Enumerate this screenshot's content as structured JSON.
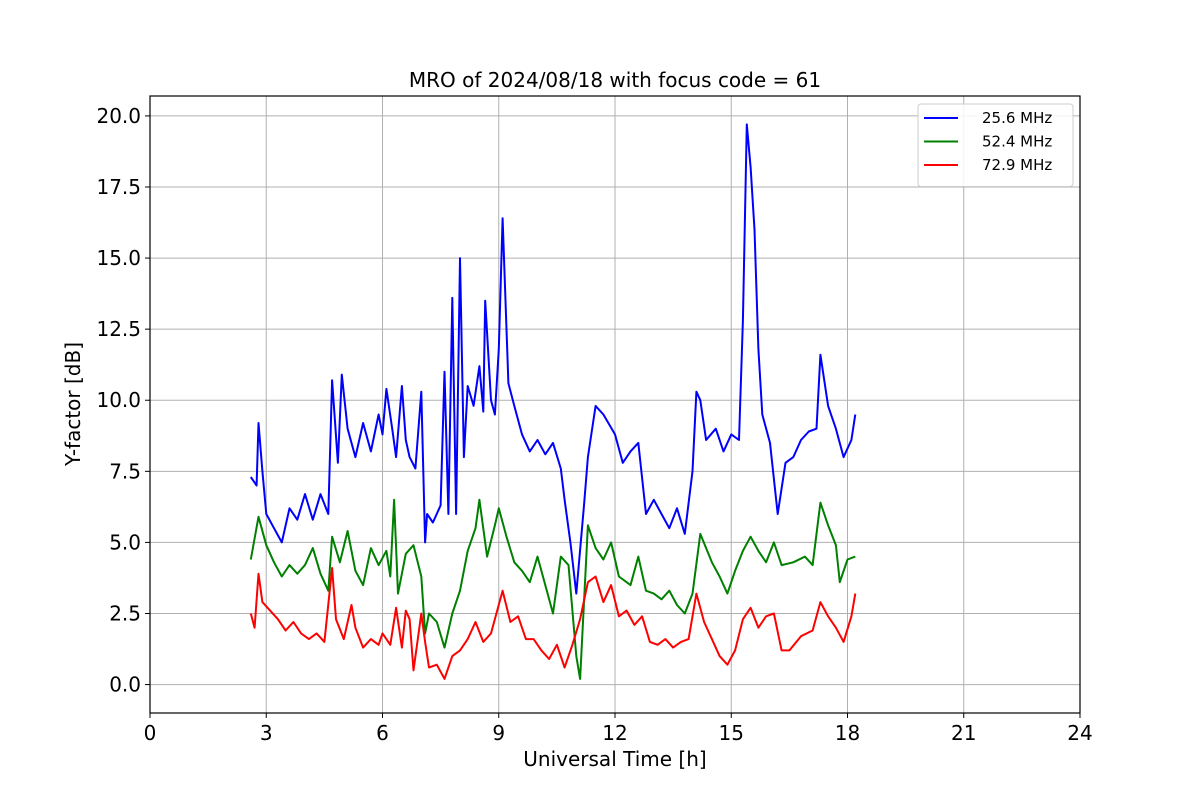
{
  "chart_data": {
    "type": "line",
    "title": "MRO of 2024/08/18 with focus code = 61",
    "xlabel": "Universal Time [h]",
    "ylabel": "Y-factor [dB]",
    "xlim": [
      0,
      24
    ],
    "ylim": [
      -1.0,
      20.7
    ],
    "xticks": [
      0,
      3,
      6,
      9,
      12,
      15,
      18,
      21,
      24
    ],
    "yticks": [
      0.0,
      2.5,
      5.0,
      7.5,
      10.0,
      12.5,
      15.0,
      17.5,
      20.0
    ],
    "ytick_labels": [
      "0.0",
      "2.5",
      "5.0",
      "7.5",
      "10.0",
      "12.5",
      "15.0",
      "17.5",
      "20.0"
    ],
    "grid": true,
    "legend_position": "top-right",
    "series": [
      {
        "name": "25.6 MHz",
        "color": "#0000ff",
        "points": [
          [
            2.6,
            7.3
          ],
          [
            2.75,
            7.0
          ],
          [
            2.8,
            9.2
          ],
          [
            2.9,
            7.5
          ],
          [
            3.0,
            6.0
          ],
          [
            3.2,
            5.5
          ],
          [
            3.4,
            5.0
          ],
          [
            3.6,
            6.2
          ],
          [
            3.8,
            5.8
          ],
          [
            4.0,
            6.7
          ],
          [
            4.2,
            5.8
          ],
          [
            4.4,
            6.7
          ],
          [
            4.6,
            6.0
          ],
          [
            4.7,
            10.7
          ],
          [
            4.85,
            7.8
          ],
          [
            4.95,
            10.9
          ],
          [
            5.1,
            9.0
          ],
          [
            5.3,
            8.0
          ],
          [
            5.5,
            9.2
          ],
          [
            5.7,
            8.2
          ],
          [
            5.9,
            9.5
          ],
          [
            6.0,
            8.8
          ],
          [
            6.1,
            10.4
          ],
          [
            6.25,
            9.0
          ],
          [
            6.35,
            8.0
          ],
          [
            6.5,
            10.5
          ],
          [
            6.6,
            8.6
          ],
          [
            6.7,
            8.0
          ],
          [
            6.85,
            7.6
          ],
          [
            7.0,
            10.3
          ],
          [
            7.1,
            5.0
          ],
          [
            7.15,
            6.0
          ],
          [
            7.3,
            5.7
          ],
          [
            7.5,
            6.3
          ],
          [
            7.6,
            11.0
          ],
          [
            7.7,
            6.0
          ],
          [
            7.8,
            13.6
          ],
          [
            7.9,
            6.0
          ],
          [
            8.0,
            15.0
          ],
          [
            8.1,
            8.0
          ],
          [
            8.2,
            10.5
          ],
          [
            8.35,
            9.8
          ],
          [
            8.5,
            11.2
          ],
          [
            8.6,
            9.6
          ],
          [
            8.65,
            13.5
          ],
          [
            8.8,
            10.0
          ],
          [
            8.9,
            9.5
          ],
          [
            9.0,
            11.8
          ],
          [
            9.1,
            16.4
          ],
          [
            9.25,
            10.6
          ],
          [
            9.4,
            9.8
          ],
          [
            9.6,
            8.8
          ],
          [
            9.8,
            8.2
          ],
          [
            10.0,
            8.6
          ],
          [
            10.2,
            8.1
          ],
          [
            10.4,
            8.5
          ],
          [
            10.6,
            7.6
          ],
          [
            10.7,
            6.5
          ],
          [
            10.85,
            5.0
          ],
          [
            11.0,
            3.2
          ],
          [
            11.2,
            6.3
          ],
          [
            11.3,
            8.0
          ],
          [
            11.5,
            9.8
          ],
          [
            11.7,
            9.5
          ],
          [
            12.0,
            8.8
          ],
          [
            12.2,
            7.8
          ],
          [
            12.4,
            8.2
          ],
          [
            12.6,
            8.5
          ],
          [
            12.8,
            6.0
          ],
          [
            13.0,
            6.5
          ],
          [
            13.2,
            6.0
          ],
          [
            13.4,
            5.5
          ],
          [
            13.6,
            6.2
          ],
          [
            13.8,
            5.3
          ],
          [
            14.0,
            7.5
          ],
          [
            14.1,
            10.3
          ],
          [
            14.2,
            10.0
          ],
          [
            14.35,
            8.6
          ],
          [
            14.6,
            9.0
          ],
          [
            14.8,
            8.2
          ],
          [
            15.0,
            8.8
          ],
          [
            15.2,
            8.6
          ],
          [
            15.3,
            12.8
          ],
          [
            15.4,
            19.7
          ],
          [
            15.5,
            18.2
          ],
          [
            15.6,
            16.0
          ],
          [
            15.7,
            11.8
          ],
          [
            15.8,
            9.5
          ],
          [
            16.0,
            8.5
          ],
          [
            16.2,
            6.0
          ],
          [
            16.4,
            7.8
          ],
          [
            16.6,
            8.0
          ],
          [
            16.8,
            8.6
          ],
          [
            17.0,
            8.9
          ],
          [
            17.2,
            9.0
          ],
          [
            17.3,
            11.6
          ],
          [
            17.5,
            9.8
          ],
          [
            17.7,
            9.0
          ],
          [
            17.9,
            8.0
          ],
          [
            18.1,
            8.6
          ],
          [
            18.2,
            9.5
          ]
        ]
      },
      {
        "name": "52.4 MHz",
        "color": "#008000",
        "points": [
          [
            2.6,
            4.4
          ],
          [
            2.8,
            5.9
          ],
          [
            3.0,
            4.9
          ],
          [
            3.2,
            4.3
          ],
          [
            3.4,
            3.8
          ],
          [
            3.6,
            4.2
          ],
          [
            3.8,
            3.9
          ],
          [
            4.0,
            4.2
          ],
          [
            4.2,
            4.8
          ],
          [
            4.4,
            3.9
          ],
          [
            4.6,
            3.3
          ],
          [
            4.7,
            5.2
          ],
          [
            4.9,
            4.3
          ],
          [
            5.1,
            5.4
          ],
          [
            5.3,
            4.0
          ],
          [
            5.5,
            3.5
          ],
          [
            5.7,
            4.8
          ],
          [
            5.9,
            4.2
          ],
          [
            6.1,
            4.7
          ],
          [
            6.2,
            3.8
          ],
          [
            6.3,
            6.5
          ],
          [
            6.4,
            3.2
          ],
          [
            6.6,
            4.6
          ],
          [
            6.8,
            4.9
          ],
          [
            7.0,
            3.8
          ],
          [
            7.1,
            1.8
          ],
          [
            7.2,
            2.5
          ],
          [
            7.4,
            2.2
          ],
          [
            7.6,
            1.3
          ],
          [
            7.8,
            2.5
          ],
          [
            8.0,
            3.3
          ],
          [
            8.2,
            4.7
          ],
          [
            8.4,
            5.5
          ],
          [
            8.5,
            6.5
          ],
          [
            8.7,
            4.5
          ],
          [
            8.9,
            5.6
          ],
          [
            9.0,
            6.2
          ],
          [
            9.2,
            5.2
          ],
          [
            9.4,
            4.3
          ],
          [
            9.6,
            4.0
          ],
          [
            9.8,
            3.6
          ],
          [
            10.0,
            4.5
          ],
          [
            10.2,
            3.5
          ],
          [
            10.4,
            2.5
          ],
          [
            10.6,
            4.5
          ],
          [
            10.8,
            4.2
          ],
          [
            11.0,
            1.0
          ],
          [
            11.1,
            0.2
          ],
          [
            11.3,
            5.6
          ],
          [
            11.5,
            4.8
          ],
          [
            11.7,
            4.4
          ],
          [
            11.9,
            5.0
          ],
          [
            12.1,
            3.8
          ],
          [
            12.4,
            3.5
          ],
          [
            12.6,
            4.5
          ],
          [
            12.8,
            3.3
          ],
          [
            13.0,
            3.2
          ],
          [
            13.2,
            3.0
          ],
          [
            13.4,
            3.3
          ],
          [
            13.6,
            2.8
          ],
          [
            13.8,
            2.5
          ],
          [
            14.0,
            3.2
          ],
          [
            14.2,
            5.3
          ],
          [
            14.5,
            4.3
          ],
          [
            14.7,
            3.8
          ],
          [
            14.9,
            3.2
          ],
          [
            15.1,
            4.0
          ],
          [
            15.3,
            4.7
          ],
          [
            15.5,
            5.2
          ],
          [
            15.7,
            4.7
          ],
          [
            15.9,
            4.3
          ],
          [
            16.1,
            5.0
          ],
          [
            16.3,
            4.2
          ],
          [
            16.6,
            4.3
          ],
          [
            16.9,
            4.5
          ],
          [
            17.1,
            4.2
          ],
          [
            17.3,
            6.4
          ],
          [
            17.5,
            5.6
          ],
          [
            17.7,
            4.9
          ],
          [
            17.8,
            3.6
          ],
          [
            18.0,
            4.4
          ],
          [
            18.2,
            4.5
          ]
        ]
      },
      {
        "name": "72.9 MHz",
        "color": "#ff0000",
        "points": [
          [
            2.6,
            2.5
          ],
          [
            2.7,
            2.0
          ],
          [
            2.8,
            3.9
          ],
          [
            2.9,
            2.9
          ],
          [
            3.1,
            2.6
          ],
          [
            3.3,
            2.3
          ],
          [
            3.5,
            1.9
          ],
          [
            3.7,
            2.2
          ],
          [
            3.9,
            1.8
          ],
          [
            4.1,
            1.6
          ],
          [
            4.3,
            1.8
          ],
          [
            4.5,
            1.5
          ],
          [
            4.7,
            4.1
          ],
          [
            4.8,
            2.3
          ],
          [
            5.0,
            1.6
          ],
          [
            5.2,
            2.8
          ],
          [
            5.3,
            2.0
          ],
          [
            5.5,
            1.3
          ],
          [
            5.7,
            1.6
          ],
          [
            5.9,
            1.4
          ],
          [
            6.0,
            1.8
          ],
          [
            6.2,
            1.4
          ],
          [
            6.35,
            2.7
          ],
          [
            6.5,
            1.3
          ],
          [
            6.6,
            2.6
          ],
          [
            6.7,
            2.3
          ],
          [
            6.8,
            0.5
          ],
          [
            7.0,
            2.5
          ],
          [
            7.1,
            1.5
          ],
          [
            7.2,
            0.6
          ],
          [
            7.4,
            0.7
          ],
          [
            7.6,
            0.2
          ],
          [
            7.8,
            1.0
          ],
          [
            8.0,
            1.2
          ],
          [
            8.2,
            1.6
          ],
          [
            8.4,
            2.2
          ],
          [
            8.6,
            1.5
          ],
          [
            8.8,
            1.8
          ],
          [
            9.1,
            3.3
          ],
          [
            9.3,
            2.2
          ],
          [
            9.5,
            2.4
          ],
          [
            9.7,
            1.6
          ],
          [
            9.9,
            1.6
          ],
          [
            10.1,
            1.2
          ],
          [
            10.3,
            0.9
          ],
          [
            10.5,
            1.4
          ],
          [
            10.7,
            0.6
          ],
          [
            10.9,
            1.4
          ],
          [
            11.1,
            2.3
          ],
          [
            11.3,
            3.6
          ],
          [
            11.5,
            3.8
          ],
          [
            11.7,
            2.9
          ],
          [
            11.9,
            3.5
          ],
          [
            12.1,
            2.4
          ],
          [
            12.3,
            2.6
          ],
          [
            12.5,
            2.1
          ],
          [
            12.7,
            2.4
          ],
          [
            12.9,
            1.5
          ],
          [
            13.1,
            1.4
          ],
          [
            13.3,
            1.6
          ],
          [
            13.5,
            1.3
          ],
          [
            13.7,
            1.5
          ],
          [
            13.9,
            1.6
          ],
          [
            14.1,
            3.2
          ],
          [
            14.3,
            2.2
          ],
          [
            14.5,
            1.6
          ],
          [
            14.7,
            1.0
          ],
          [
            14.9,
            0.7
          ],
          [
            15.1,
            1.2
          ],
          [
            15.3,
            2.3
          ],
          [
            15.5,
            2.7
          ],
          [
            15.7,
            2.0
          ],
          [
            15.9,
            2.4
          ],
          [
            16.1,
            2.5
          ],
          [
            16.3,
            1.2
          ],
          [
            16.5,
            1.2
          ],
          [
            16.8,
            1.7
          ],
          [
            17.1,
            1.9
          ],
          [
            17.3,
            2.9
          ],
          [
            17.5,
            2.4
          ],
          [
            17.7,
            2.0
          ],
          [
            17.9,
            1.5
          ],
          [
            18.1,
            2.4
          ],
          [
            18.2,
            3.2
          ]
        ]
      }
    ]
  }
}
